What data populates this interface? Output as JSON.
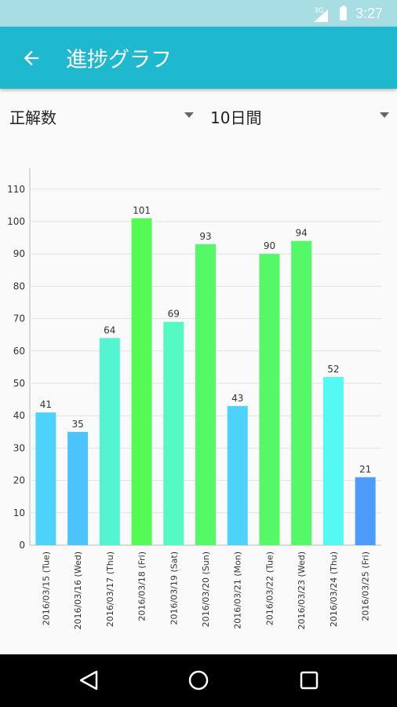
{
  "status_bar": {
    "network": "3G",
    "time": "3:27"
  },
  "app_bar": {
    "title": "進捗グラフ",
    "back_icon": "arrow-left-icon"
  },
  "filters": {
    "metric": {
      "selected": "正解数"
    },
    "period": {
      "selected": "10日間"
    }
  },
  "chart_data": {
    "type": "bar",
    "categories": [
      "2016/03/15 (Tue)",
      "2016/03/16 (Wed)",
      "2016/03/17 (Thu)",
      "2016/03/18 (Fri)",
      "2016/03/19 (Sat)",
      "2016/03/20 (Sun)",
      "2016/03/21 (Mon)",
      "2016/03/22 (Tue)",
      "2016/03/23 (Wed)",
      "2016/03/24 (Thu)",
      "2016/03/25 (Fri)"
    ],
    "values": [
      41,
      35,
      64,
      101,
      69,
      93,
      43,
      90,
      94,
      52,
      21
    ],
    "bar_colors": [
      "#4dd2fc",
      "#4cc3fb",
      "#55f4d1",
      "#55fb55",
      "#55f9c4",
      "#55f866",
      "#4dd2fc",
      "#55f866",
      "#55f866",
      "#55f9f3",
      "#4d9bfb"
    ],
    "yticks": [
      0,
      10,
      20,
      30,
      40,
      50,
      60,
      70,
      80,
      90,
      100,
      110
    ],
    "ylim": [
      0,
      115
    ],
    "grid": true,
    "title": "",
    "xlabel": "",
    "ylabel": ""
  },
  "nav_bar": {
    "back": "nav-back-icon",
    "home": "nav-home-icon",
    "recents": "nav-recents-icon"
  }
}
